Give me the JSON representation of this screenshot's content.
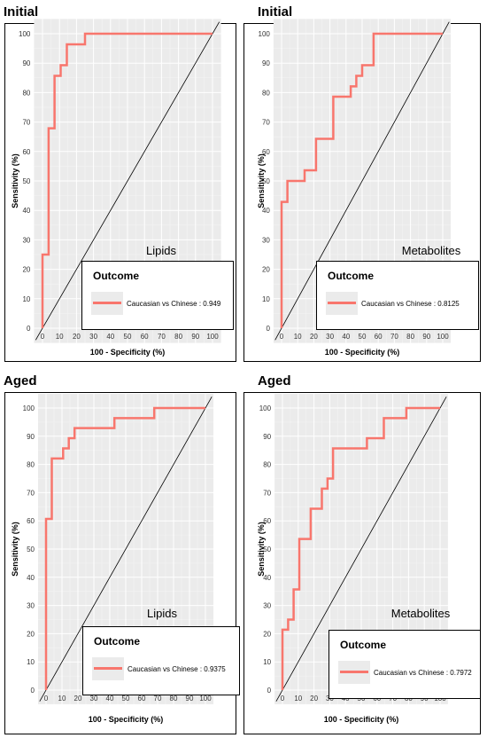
{
  "chart_data": [
    {
      "type": "line",
      "panel_label": "Initial",
      "corner_text": "Lipids",
      "xlabel": "100 - Specificity (%)",
      "ylabel": "Sensitivity (%)",
      "xlim": [
        0,
        100
      ],
      "ylim": [
        0,
        100
      ],
      "ticks": [
        0,
        10,
        20,
        30,
        40,
        50,
        60,
        70,
        80,
        90,
        100
      ],
      "grid": true,
      "legend": {
        "title": "Outcome",
        "entry": "Caucasian vs Chinese : 0.949",
        "placement": "bottom-right"
      },
      "series": [
        {
          "x": [
            0,
            0,
            3.6,
            3.6,
            7.1,
            7.1,
            10.7,
            10.7,
            14.3,
            14.3,
            25,
            25,
            100
          ],
          "y": [
            0,
            25,
            25,
            67.9,
            67.9,
            85.7,
            85.7,
            89.3,
            89.3,
            96.4,
            96.4,
            100,
            100
          ]
        }
      ],
      "diagonal": true,
      "color": "#f8766d"
    },
    {
      "type": "line",
      "panel_label": "Initial",
      "corner_text": "Metabolites",
      "xlabel": "100 - Specificity (%)",
      "ylabel": "Sensitivity (%)",
      "xlim": [
        0,
        100
      ],
      "ylim": [
        0,
        100
      ],
      "ticks": [
        0,
        10,
        20,
        30,
        40,
        50,
        60,
        70,
        80,
        90,
        100
      ],
      "grid": true,
      "legend": {
        "title": "Outcome",
        "entry": "Caucasian vs Chinese : 0.8125",
        "placement": "bottom-right"
      },
      "series": [
        {
          "x": [
            0,
            0,
            3.6,
            3.6,
            14.3,
            14.3,
            21.4,
            21.4,
            32.1,
            32.1,
            42.9,
            42.9,
            46.4,
            46.4,
            50,
            50,
            57.1,
            57.1,
            100
          ],
          "y": [
            0,
            42.9,
            42.9,
            50,
            50,
            53.6,
            53.6,
            64.3,
            64.3,
            78.6,
            78.6,
            82.1,
            82.1,
            85.7,
            85.7,
            89.3,
            89.3,
            100,
            100
          ]
        }
      ],
      "diagonal": true,
      "color": "#f8766d"
    },
    {
      "type": "line",
      "panel_label": "Aged",
      "corner_text": "Lipids",
      "xlabel": "100 - Specificity (%)",
      "ylabel": "Sensitivity (%)",
      "xlim": [
        0,
        100
      ],
      "ylim": [
        0,
        100
      ],
      "ticks": [
        0,
        10,
        20,
        30,
        40,
        50,
        60,
        70,
        80,
        90,
        100
      ],
      "grid": true,
      "legend": {
        "title": "Outcome",
        "entry": "Caucasian vs Chinese : 0.9375",
        "placement": "bottom-right"
      },
      "series": [
        {
          "x": [
            0,
            0,
            3.6,
            3.6,
            10.7,
            10.7,
            14.3,
            14.3,
            17.9,
            17.9,
            42.9,
            42.9,
            67.9,
            67.9,
            100
          ],
          "y": [
            0,
            60.7,
            60.7,
            82.1,
            82.1,
            85.7,
            85.7,
            89.3,
            89.3,
            92.9,
            92.9,
            96.4,
            96.4,
            100,
            100
          ]
        }
      ],
      "diagonal": true,
      "color": "#f8766d"
    },
    {
      "type": "line",
      "panel_label": "Aged",
      "corner_text": "Metabolites",
      "xlabel": "100 - Specificity (%)",
      "ylabel": "Sensitivity (%)",
      "xlim": [
        0,
        100
      ],
      "ylim": [
        0,
        100
      ],
      "ticks": [
        0,
        10,
        20,
        30,
        40,
        50,
        60,
        70,
        80,
        90,
        100
      ],
      "grid": true,
      "legend": {
        "title": "Outcome",
        "entry": "Caucasian vs Chinese : 0.7972",
        "placement": "bottom-right"
      },
      "series": [
        {
          "x": [
            0,
            0,
            3.6,
            3.6,
            7.1,
            7.1,
            10.7,
            10.7,
            17.9,
            17.9,
            25,
            25,
            28.6,
            28.6,
            32.1,
            32.1,
            53.6,
            53.6,
            64.3,
            64.3,
            78.6,
            78.6,
            100
          ],
          "y": [
            0,
            21.4,
            21.4,
            25,
            25,
            35.7,
            35.7,
            53.6,
            53.6,
            64.3,
            64.3,
            71.4,
            71.4,
            75,
            75,
            85.7,
            85.7,
            89.3,
            89.3,
            96.4,
            96.4,
            100,
            100
          ]
        }
      ],
      "diagonal": true,
      "color": "#f8766d"
    }
  ]
}
